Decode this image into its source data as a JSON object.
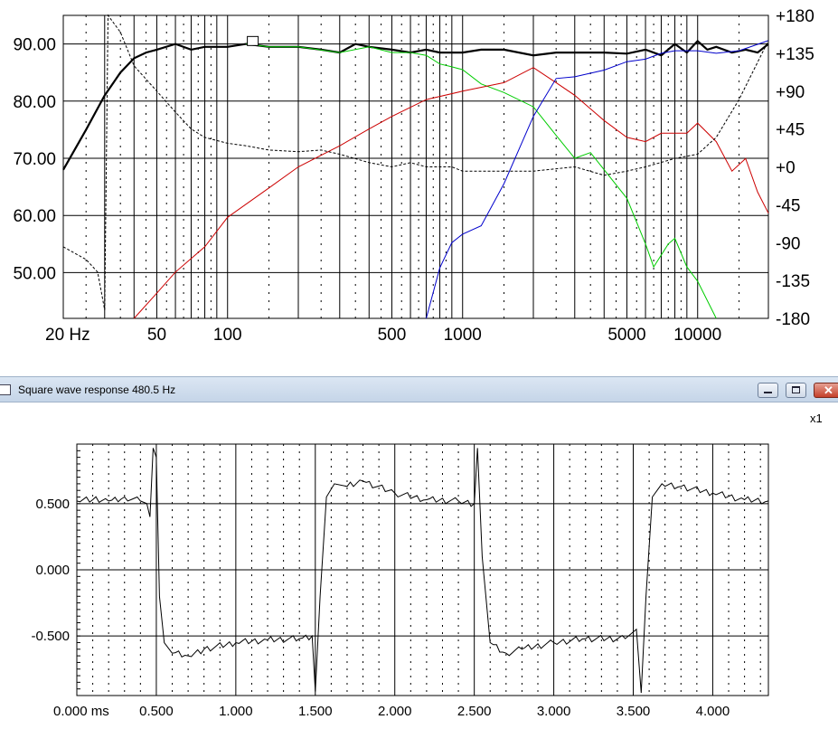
{
  "chart_data": [
    {
      "type": "line",
      "title": "",
      "x_scale": "log",
      "xlim": [
        20,
        20000
      ],
      "ylim_left": [
        42,
        95
      ],
      "ylim_right": [
        -180,
        180
      ],
      "x_tick_labels": [
        "20 Hz",
        "50",
        "100",
        "500",
        "1000",
        "5000",
        "10000"
      ],
      "y_left_ticks": [
        "90.00",
        "80.00",
        "70.00",
        "60.00",
        "50.00"
      ],
      "y_right_ticks": [
        "+180",
        "+135",
        "+90",
        "+45",
        "+0",
        "-45",
        "-90",
        "-135",
        "-180"
      ],
      "grid": true,
      "series": [
        {
          "color": "#000000",
          "axis": "left",
          "style": "bold",
          "points": [
            [
              20,
              68
            ],
            [
              25,
              75
            ],
            [
              30,
              81
            ],
            [
              35,
              85
            ],
            [
              40,
              87.5
            ],
            [
              45,
              88.5
            ],
            [
              50,
              89
            ],
            [
              60,
              90
            ],
            [
              70,
              89
            ],
            [
              80,
              89.5
            ],
            [
              100,
              89.5
            ],
            [
              120,
              90
            ],
            [
              150,
              89.5
            ],
            [
              200,
              89.5
            ],
            [
              250,
              89
            ],
            [
              300,
              88.5
            ],
            [
              350,
              90
            ],
            [
              400,
              89.5
            ],
            [
              500,
              89
            ],
            [
              600,
              88.5
            ],
            [
              700,
              89
            ],
            [
              800,
              88.5
            ],
            [
              900,
              88.5
            ],
            [
              1000,
              88.5
            ],
            [
              1200,
              89
            ],
            [
              1500,
              89
            ],
            [
              2000,
              88
            ],
            [
              2500,
              88.5
            ],
            [
              3000,
              88.5
            ],
            [
              4000,
              88.5
            ],
            [
              5000,
              88.3
            ],
            [
              6000,
              89
            ],
            [
              7000,
              88
            ],
            [
              8000,
              90
            ],
            [
              9000,
              88.5
            ],
            [
              10000,
              90.5
            ],
            [
              11000,
              89
            ],
            [
              12000,
              89.5
            ],
            [
              14000,
              88.5
            ],
            [
              16000,
              89
            ],
            [
              18000,
              88.5
            ],
            [
              20000,
              90
            ]
          ]
        },
        {
          "color": "#00cc00",
          "axis": "left",
          "style": "thin",
          "points": [
            [
              120,
              90
            ],
            [
              150,
              89.5
            ],
            [
              200,
              89.5
            ],
            [
              300,
              88.5
            ],
            [
              400,
              89.5
            ],
            [
              500,
              88.5
            ],
            [
              600,
              88.5
            ],
            [
              700,
              88
            ],
            [
              800,
              86.5
            ],
            [
              900,
              86
            ],
            [
              1000,
              85.5
            ],
            [
              1200,
              83
            ],
            [
              1500,
              81.5
            ],
            [
              2000,
              79
            ],
            [
              2500,
              74
            ],
            [
              3000,
              70
            ],
            [
              3500,
              71
            ],
            [
              4000,
              68
            ],
            [
              5000,
              63
            ],
            [
              6000,
              55
            ],
            [
              6500,
              51
            ],
            [
              7500,
              55
            ],
            [
              8000,
              56
            ],
            [
              9000,
              51
            ],
            [
              10000,
              48.5
            ],
            [
              12000,
              42
            ]
          ]
        },
        {
          "color": "#cc0000",
          "axis": "right",
          "style": "thin",
          "points": [
            [
              40,
              -180
            ],
            [
              50,
              -150
            ],
            [
              60,
              -125
            ],
            [
              80,
              -95
            ],
            [
              100,
              -60
            ],
            [
              150,
              -25
            ],
            [
              200,
              0
            ],
            [
              300,
              25
            ],
            [
              400,
              45
            ],
            [
              500,
              60
            ],
            [
              700,
              80
            ],
            [
              1000,
              90
            ],
            [
              1500,
              100
            ],
            [
              2000,
              118
            ],
            [
              2500,
              100
            ],
            [
              3000,
              85
            ],
            [
              4000,
              55
            ],
            [
              5000,
              35
            ],
            [
              6000,
              30
            ],
            [
              7000,
              40
            ],
            [
              8000,
              40
            ],
            [
              9000,
              40
            ],
            [
              10000,
              52
            ],
            [
              12000,
              30
            ],
            [
              14000,
              -5
            ],
            [
              16000,
              10
            ],
            [
              18000,
              -30
            ],
            [
              20000,
              -55
            ]
          ]
        },
        {
          "color": "#0000cc",
          "axis": "right",
          "style": "thin",
          "points": [
            [
              700,
              -180
            ],
            [
              800,
              -120
            ],
            [
              900,
              -90
            ],
            [
              1000,
              -80
            ],
            [
              1200,
              -70
            ],
            [
              1500,
              -20
            ],
            [
              2000,
              60
            ],
            [
              2500,
              105
            ],
            [
              3000,
              107
            ],
            [
              4000,
              115
            ],
            [
              5000,
              125
            ],
            [
              6000,
              128
            ],
            [
              7000,
              135
            ],
            [
              8000,
              138
            ],
            [
              10000,
              138
            ],
            [
              12000,
              135
            ],
            [
              15000,
              138
            ],
            [
              20000,
              150
            ]
          ]
        },
        {
          "color": "#000000",
          "axis": "right",
          "style": "dotted",
          "points": [
            [
              20,
              -95
            ],
            [
              25,
              -110
            ],
            [
              28,
              -125
            ],
            [
              30,
              -170
            ],
            [
              31,
              180
            ],
            [
              35,
              160
            ],
            [
              40,
              120
            ],
            [
              50,
              90
            ],
            [
              60,
              65
            ],
            [
              70,
              45
            ],
            [
              80,
              35
            ],
            [
              100,
              28
            ],
            [
              120,
              25
            ],
            [
              150,
              20
            ],
            [
              200,
              18
            ],
            [
              250,
              20
            ],
            [
              300,
              15
            ],
            [
              400,
              5
            ],
            [
              500,
              0
            ],
            [
              600,
              5
            ],
            [
              700,
              0
            ],
            [
              900,
              0
            ],
            [
              1000,
              -5
            ],
            [
              1500,
              -5
            ],
            [
              2000,
              -5
            ],
            [
              3000,
              0
            ],
            [
              4000,
              -10
            ],
            [
              5000,
              -5
            ],
            [
              6000,
              0
            ],
            [
              8000,
              10
            ],
            [
              10000,
              15
            ],
            [
              12000,
              35
            ],
            [
              15000,
              80
            ],
            [
              20000,
              150
            ]
          ]
        }
      ]
    },
    {
      "type": "line",
      "title": "Square wave response 480.5 Hz",
      "xlabel": "ms",
      "xlim": [
        0,
        4.35
      ],
      "ylim": [
        -0.95,
        0.95
      ],
      "x_tick_labels": [
        "0.000 ms",
        "0.500",
        "1.000",
        "1.500",
        "2.000",
        "2.500",
        "3.000",
        "3.500",
        "4.000"
      ],
      "y_tick_labels": [
        "0.500",
        "0.000",
        "-0.500"
      ],
      "grid": true,
      "zoom_label": "x1",
      "series": [
        {
          "color": "#000000",
          "points": [
            [
              0.0,
              0.52
            ],
            [
              0.1,
              0.53
            ],
            [
              0.2,
              0.52
            ],
            [
              0.3,
              0.55
            ],
            [
              0.4,
              0.52
            ],
            [
              0.44,
              0.5
            ],
            [
              0.46,
              0.4
            ],
            [
              0.48,
              0.92
            ],
            [
              0.5,
              0.85
            ],
            [
              0.52,
              -0.2
            ],
            [
              0.55,
              -0.55
            ],
            [
              0.6,
              -0.63
            ],
            [
              0.7,
              -0.65
            ],
            [
              0.8,
              -0.6
            ],
            [
              1.0,
              -0.55
            ],
            [
              1.2,
              -0.53
            ],
            [
              1.4,
              -0.52
            ],
            [
              1.48,
              -0.5
            ],
            [
              1.5,
              -0.92
            ],
            [
              1.53,
              -0.2
            ],
            [
              1.57,
              0.55
            ],
            [
              1.62,
              0.65
            ],
            [
              1.7,
              0.63
            ],
            [
              1.8,
              0.67
            ],
            [
              2.0,
              0.58
            ],
            [
              2.2,
              0.53
            ],
            [
              2.4,
              0.52
            ],
            [
              2.5,
              0.5
            ],
            [
              2.52,
              0.92
            ],
            [
              2.55,
              0.1
            ],
            [
              2.6,
              -0.55
            ],
            [
              2.7,
              -0.63
            ],
            [
              2.8,
              -0.6
            ],
            [
              3.0,
              -0.55
            ],
            [
              3.2,
              -0.52
            ],
            [
              3.45,
              -0.52
            ],
            [
              3.52,
              -0.45
            ],
            [
              3.55,
              -0.93
            ],
            [
              3.58,
              -0.2
            ],
            [
              3.62,
              0.55
            ],
            [
              3.68,
              0.65
            ],
            [
              3.8,
              0.63
            ],
            [
              4.0,
              0.58
            ],
            [
              4.2,
              0.53
            ],
            [
              4.35,
              0.52
            ]
          ]
        }
      ]
    }
  ]
}
